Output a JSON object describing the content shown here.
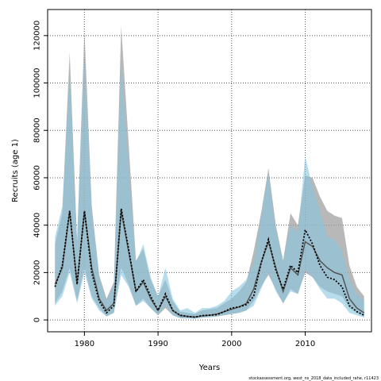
{
  "chart_data": {
    "type": "line",
    "xlabel": "Years",
    "ylabel": "Recruits (age 1)",
    "xlim": [
      1975,
      2019
    ],
    "ylim": [
      -5000,
      131000
    ],
    "x_ticks": [
      1980,
      1990,
      2000,
      2010
    ],
    "y_ticks": [
      0,
      20000,
      40000,
      60000,
      80000,
      100000,
      120000
    ],
    "grid": true,
    "grid_style": "dotted",
    "footnote": "stockassessment.org, west_ns_2018_data_included_rahe, r11423",
    "colors": {
      "gray_band": "#a0a0a0",
      "gray_line": "#555555",
      "blue_band": "#87c4e0",
      "blue_line": "#000000",
      "grid": "#555555"
    },
    "x": [
      1976,
      1977,
      1978,
      1979,
      1980,
      1981,
      1982,
      1983,
      1984,
      1985,
      1986,
      1987,
      1988,
      1989,
      1990,
      1991,
      1992,
      1993,
      1994,
      1995,
      1996,
      1997,
      1998,
      1999,
      2000,
      2001,
      2002,
      2003,
      2004,
      2005,
      2006,
      2007,
      2008,
      2009,
      2010,
      2011,
      2012,
      2013,
      2014,
      2015,
      2016,
      2017,
      2018
    ],
    "series": [
      {
        "values": [
          15000,
          22000,
          46000,
          15000,
          46000,
          22000,
          9000,
          4000,
          7000,
          46000,
          29000,
          12000,
          16000,
          9000,
          4000,
          10000,
          4000,
          1800,
          1500,
          1200,
          1800,
          2000,
          2500,
          3500,
          4500,
          5500,
          7000,
          13000,
          24000,
          33000,
          22000,
          12000,
          22000,
          19000,
          33000,
          31000,
          25000,
          22000,
          20000,
          19000,
          9000,
          5000,
          3000
        ],
        "lower": [
          7000,
          12000,
          22000,
          8000,
          22000,
          10000,
          5000,
          1500,
          3000,
          22000,
          15000,
          6000,
          9000,
          5000,
          2000,
          5000,
          2000,
          800,
          700,
          600,
          1000,
          1200,
          1500,
          2000,
          2500,
          3000,
          4000,
          8000,
          14000,
          19000,
          13000,
          7000,
          13000,
          11000,
          20000,
          18000,
          14000,
          12000,
          11000,
          10000,
          5000,
          3000,
          1500
        ],
        "upper": [
          32000,
          45000,
          113000,
          33000,
          122000,
          48000,
          19000,
          9000,
          16000,
          124000,
          75000,
          25000,
          30000,
          17000,
          10000,
          17000,
          8000,
          3500,
          3000,
          2500,
          4000,
          4500,
          5000,
          7000,
          9000,
          12000,
          16000,
          29000,
          45000,
          64000,
          40000,
          25000,
          45000,
          40000,
          61000,
          60000,
          52000,
          46000,
          44000,
          43000,
          23000,
          14000,
          10000
        ]
      },
      {
        "values": [
          14000,
          23000,
          46000,
          15000,
          46000,
          20000,
          8000,
          3000,
          6000,
          47000,
          30000,
          12000,
          17000,
          10000,
          4000,
          11000,
          4000,
          2000,
          1500,
          1200,
          1800,
          2000,
          2200,
          3500,
          5000,
          5500,
          6500,
          10000,
          24000,
          34000,
          21000,
          13000,
          23000,
          20000,
          38000,
          32000,
          23000,
          18000,
          17000,
          14000,
          6000,
          3500,
          2000
        ],
        "lower": [
          6000,
          10000,
          20000,
          7000,
          20000,
          9000,
          4000,
          1500,
          3000,
          19000,
          14000,
          6000,
          8000,
          5000,
          2000,
          6000,
          2000,
          800,
          600,
          500,
          900,
          1100,
          1500,
          2000,
          2500,
          3000,
          4000,
          6000,
          13000,
          20000,
          12000,
          7000,
          12000,
          11000,
          21000,
          18000,
          13000,
          9000,
          9000,
          7000,
          3000,
          2000,
          1000
        ],
        "upper": [
          35000,
          48000,
          105000,
          33000,
          110000,
          47000,
          18000,
          8000,
          15000,
          109000,
          65000,
          24000,
          32000,
          18000,
          10000,
          22000,
          9000,
          4000,
          5000,
          3000,
          5000,
          5000,
          6000,
          8000,
          12000,
          14000,
          17000,
          24000,
          44000,
          62000,
          38000,
          25000,
          40000,
          37000,
          69000,
          56000,
          46000,
          35000,
          34000,
          29000,
          17000,
          11000,
          8000
        ]
      }
    ]
  }
}
